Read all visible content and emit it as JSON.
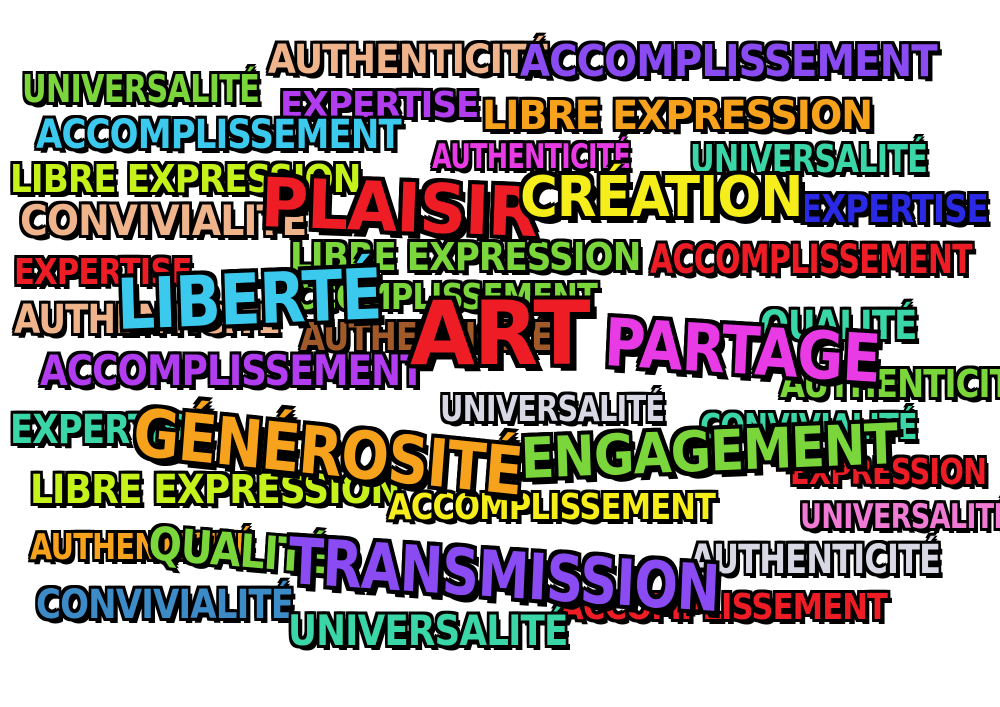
{
  "words": {
    "authenticite_top": "AUTHENTICITÉ",
    "accomplissement_top": "ACCOMPLISSEMENT",
    "universalite_left": "UNIVERSALITÉ",
    "expertise_top": "EXPERTISE",
    "libre_expression_top": "LIBRE EXPRESSION",
    "accomplissement_left": "ACCOMPLISSEMENT",
    "authenticite_mid_top": "AUTHENTICITÉ",
    "universalite_right": "UNIVERSALITÉ",
    "libre_expression_left": "LIBRE EXPRESSION",
    "plaisir": "PLAISIR",
    "creation": "CRÉATION",
    "expertise_right": "EXPERTISE",
    "convivialite_left": "CONVIVIALITÉ",
    "libre_expression_mid": "LIBRE EXPRESSION",
    "accomplissement_right": "ACCOMPLISSEMENT",
    "expertise_left": "EXPERTISE",
    "liberte": "LIBERTÉ",
    "accomplissement_mid": "ACCOMPLISSEMENT",
    "authenticite_left": "AUTHENTICITÉ",
    "authenticite_mid": "AUTHENTICITÉ",
    "qualite_right": "QUALITÉ",
    "art": "ART",
    "partage": "PARTAGE",
    "accomplissement_left2": "ACCOMPLISSEMENT",
    "authenticite_right": "AUTHENTICITÉ",
    "universalite_mid": "UNIVERSALITÉ",
    "convivialite_right": "CONVIVIALITÉ",
    "expertise_left2": "EXPERTISE",
    "generosite": "GÉNÉROSITÉ",
    "engagement": "ENGAGEMENT",
    "expression_right": "EXPRESSION",
    "libre_expression_left2": "LIBRE EXPRESSION",
    "accomplissement_bottom": "ACCOMPLISSEMENT",
    "universalite_right2": "UNIVERSALITÉ",
    "authenticite_left2": "AUTHENTICITÉ",
    "qualite_left": "QUALITÉ",
    "transmission": "TRANSMISSION",
    "authenticite_bottom": "AUTHENTICITÉ",
    "convivialite_bottom": "CONVIVIALITÉ",
    "accomplissement_bottom2": "ACCOMPLISSEMENT",
    "universalite_bottom": "UNIVERSALITÉ"
  },
  "colors": {
    "background": "#ffffff",
    "outline": "#000000",
    "red": "#ee1c25",
    "yellow": "#f5ee1a",
    "magenta": "#e83be6",
    "cyan": "#3cc9ee",
    "orange": "#f7a21c",
    "green": "#7ad63a",
    "lime": "#c6f21c",
    "purple": "#8a4bf2",
    "violet": "#b23cf0",
    "peach": "#f0b48c",
    "teal": "#3ad6a8",
    "blue": "#2a2ae6",
    "grey": "#d8d8e4",
    "pink": "#f07ad4",
    "brown": "#a05a2a"
  }
}
